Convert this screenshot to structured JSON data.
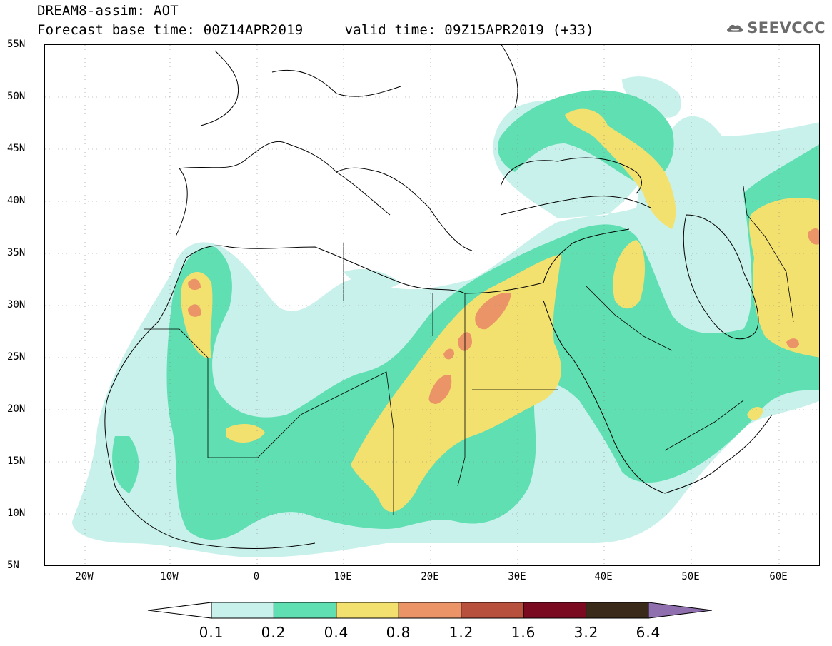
{
  "title": {
    "line1": "DREAM8-assim: AOT",
    "line2": "Forecast base time: 00Z14APR2019     valid time: 09Z15APR2019 (+33)"
  },
  "logo": {
    "text": "SEEVCCC",
    "icon": "cloud-logo-icon"
  },
  "map": {
    "projection": "lat-lon",
    "lon_range": [
      -25,
      65
    ],
    "lat_range": [
      5,
      55
    ],
    "lat_labels": [
      "55N",
      "50N",
      "45N",
      "40N",
      "35N",
      "30N",
      "25N",
      "20N",
      "15N",
      "10N",
      "5N"
    ],
    "lon_labels": [
      "20W",
      "10W",
      "0",
      "10E",
      "20E",
      "30E",
      "40E",
      "50E",
      "60E"
    ],
    "grid": "dotted"
  },
  "colorbar": {
    "labels": [
      "0.1",
      "0.2",
      "0.4",
      "0.8",
      "1.2",
      "1.6",
      "3.2",
      "6.4"
    ],
    "colors": [
      "#c9f1eb",
      "#5fdfb2",
      "#f3e16f",
      "#ea9468",
      "#b7503c",
      "#7a0a1f",
      "#3a2a1a",
      "#8f6fae"
    ],
    "extend": "both"
  }
}
